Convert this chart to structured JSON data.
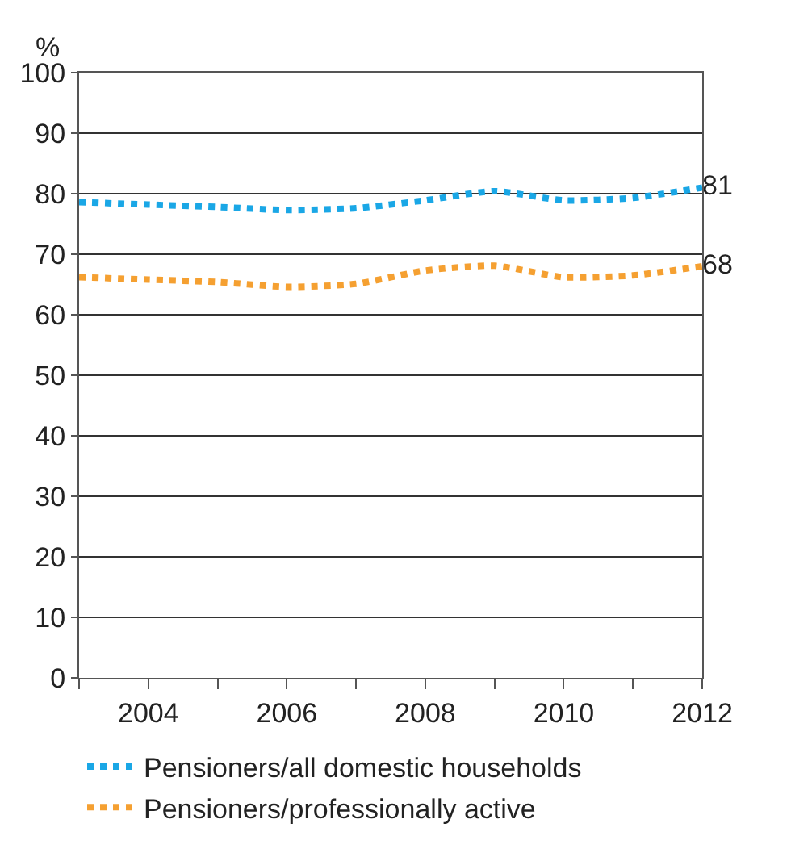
{
  "chart_data": {
    "type": "line",
    "ylabel": "%",
    "x": [
      2003,
      2004,
      2005,
      2006,
      2007,
      2008,
      2009,
      2010,
      2011,
      2012
    ],
    "series": [
      {
        "name": "Pensioners/all domestic households",
        "color": "#1aa7e6",
        "values": [
          78.6,
          78.2,
          77.8,
          77.3,
          77.6,
          78.9,
          80.4,
          78.9,
          79.3,
          81
        ],
        "value_labels": [
          null,
          null,
          null,
          null,
          null,
          null,
          null,
          null,
          null,
          "81"
        ]
      },
      {
        "name": "Pensioners/professionally active",
        "color": "#f5a031",
        "values": [
          66.2,
          65.8,
          65.4,
          64.6,
          65.1,
          67.3,
          68.1,
          66.2,
          66.5,
          68
        ],
        "value_labels": [
          null,
          null,
          null,
          null,
          null,
          null,
          null,
          null,
          null,
          "68"
        ]
      }
    ],
    "xlim": [
      2003,
      2012
    ],
    "xticks": [
      {
        "value": 2003,
        "label": null
      },
      2004,
      {
        "value": 2005,
        "label": null
      },
      2006,
      {
        "value": 2007,
        "label": null
      },
      2008,
      {
        "value": 2009,
        "label": null
      },
      2010,
      {
        "value": 2011,
        "label": null
      },
      2012
    ],
    "ylim": [
      0,
      100
    ],
    "yticks": [
      0,
      10,
      20,
      30,
      40,
      50,
      60,
      70,
      80,
      90,
      100
    ],
    "grid": "y",
    "legend": "bottom",
    "marker": "none",
    "line_style": "dotted"
  }
}
